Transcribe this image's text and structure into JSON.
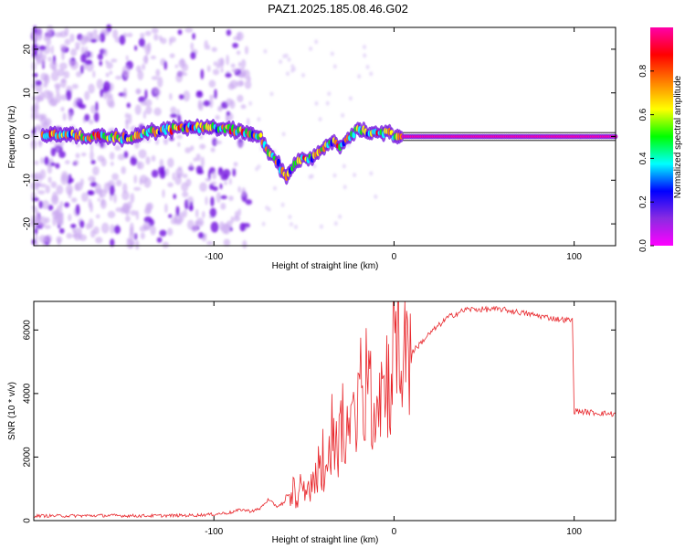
{
  "title": "PAZ1.2025.185.08.46.G02",
  "colors": {
    "snr_line": "#e8262b",
    "axis": "#000000",
    "colorbar": [
      "#ff00ff",
      "#8a2be2",
      "#0000ff",
      "#00ffff",
      "#00ff00",
      "#ffff00",
      "#ff8000",
      "#ff0000",
      "#ff00aa"
    ]
  },
  "chart_data": [
    {
      "type": "heatmap",
      "title": "PAZ1.2025.185.08.46.G02",
      "xlabel": "Height of straight line (km)",
      "ylabel": "Frequency (Hz)",
      "xlim": [
        -200,
        123
      ],
      "ylim": [
        -25,
        25
      ],
      "xticks": [
        -100,
        0,
        100
      ],
      "yticks": [
        -20,
        -10,
        0,
        10,
        20
      ],
      "colorbar": {
        "label": "Normalized spectral amplitude",
        "range": [
          0,
          1
        ],
        "ticks": [
          "0.0",
          "0.2",
          "0.4",
          "0.6",
          "0.8"
        ]
      },
      "ridge": {
        "x": [
          -190,
          -180,
          -170,
          -160,
          -150,
          -140,
          -130,
          -120,
          -110,
          -100,
          -90,
          -80,
          -75,
          -70,
          -65,
          -60,
          -55,
          -50,
          -45,
          -40,
          -35,
          -30,
          -25,
          -20,
          -15,
          -10,
          -5,
          0,
          10,
          20,
          30,
          50,
          80,
          100,
          123
        ],
        "y": [
          0.5,
          0.3,
          0,
          0,
          -0.5,
          0.5,
          1.5,
          2,
          2,
          2,
          1.5,
          1,
          0.5,
          -3,
          -6,
          -9,
          -6,
          -5,
          -5,
          -3,
          -1,
          -2,
          0,
          1.5,
          1,
          1.5,
          1,
          0,
          0,
          0,
          0,
          0,
          0,
          0,
          0
        ]
      }
    },
    {
      "type": "line",
      "xlabel": "Height of straight line (km)",
      "ylabel": "SNR (10 * v/v)",
      "xlim": [
        -200,
        123
      ],
      "ylim": [
        0,
        6900
      ],
      "xticks": [
        -100,
        0,
        100
      ],
      "yticks": [
        0,
        2000,
        4000,
        6000
      ],
      "envelope": {
        "x": [
          -200,
          -180,
          -160,
          -140,
          -120,
          -110,
          -100,
          -90,
          -85,
          -80,
          -75,
          -70,
          -65,
          -60,
          -55,
          -50,
          -45,
          -40,
          -35,
          -30,
          -25,
          -20,
          -15,
          -10,
          -5,
          0,
          10,
          20,
          30,
          40,
          50,
          60,
          70,
          80,
          90,
          99,
          100,
          110,
          123
        ],
        "y": [
          150,
          150,
          160,
          150,
          160,
          170,
          200,
          260,
          350,
          300,
          350,
          650,
          450,
          600,
          700,
          800,
          1100,
          1500,
          2000,
          2600,
          3000,
          3300,
          3600,
          4000,
          4400,
          4800,
          5300,
          5900,
          6400,
          6650,
          6650,
          6650,
          6550,
          6450,
          6350,
          6300,
          3450,
          3400,
          3350
        ]
      }
    }
  ]
}
